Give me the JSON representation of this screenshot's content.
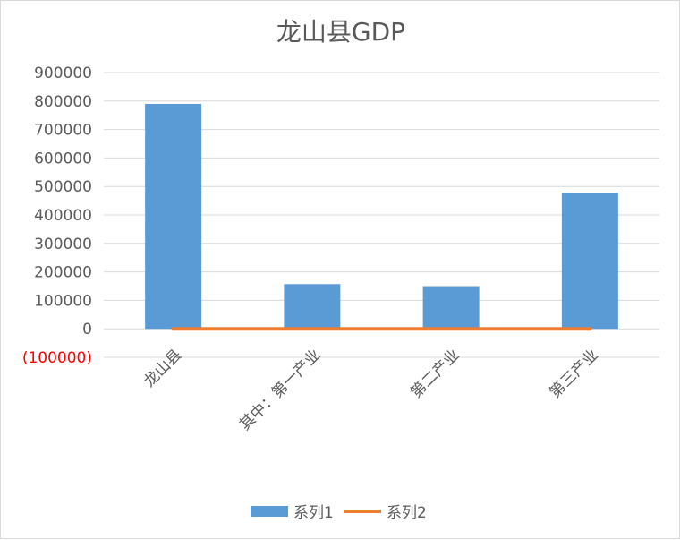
{
  "chart_data": {
    "type": "bar",
    "title": "龙山县GDP",
    "categories": [
      "龙山县",
      "其中：第一产业",
      "第二产业",
      "第三产业"
    ],
    "series": [
      {
        "name": "系列1",
        "type": "bar",
        "color": "#5b9bd5",
        "values": [
          790000,
          157000,
          150000,
          478000
        ]
      },
      {
        "name": "系列2",
        "type": "line",
        "color": "#ed7d31",
        "values": [
          0,
          0,
          0,
          0
        ]
      }
    ],
    "y_ticks": [
      "900000",
      "800000",
      "700000",
      "600000",
      "500000",
      "400000",
      "300000",
      "200000",
      "100000",
      "0",
      "(100000)"
    ],
    "ylim": [
      -100000,
      900000
    ],
    "grid": true,
    "legend_position": "bottom"
  }
}
